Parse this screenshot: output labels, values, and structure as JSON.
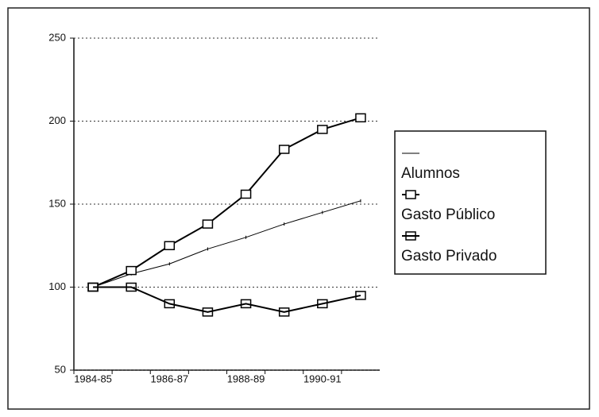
{
  "chart_data": {
    "type": "line",
    "categories": [
      "1984-85",
      null,
      "1986-87",
      null,
      "1988-89",
      null,
      "1990-91",
      null
    ],
    "series": [
      {
        "name": "Alumnos",
        "color": "#000000",
        "marker": "none",
        "values": [
          100,
          108,
          114,
          123,
          130,
          138,
          145,
          152
        ]
      },
      {
        "name": "Gasto Público",
        "color": "#000000",
        "marker": "square",
        "values": [
          100,
          110,
          125,
          138,
          156,
          183,
          195,
          202
        ]
      },
      {
        "name": "Gasto Privado",
        "color": "#000000",
        "marker": "square",
        "values": [
          100,
          100,
          90,
          85,
          90,
          85,
          90,
          95
        ]
      }
    ],
    "ylim": [
      50,
      250
    ],
    "yticks": [
      50,
      100,
      150,
      200,
      250
    ],
    "grid": true,
    "legend": "right"
  }
}
